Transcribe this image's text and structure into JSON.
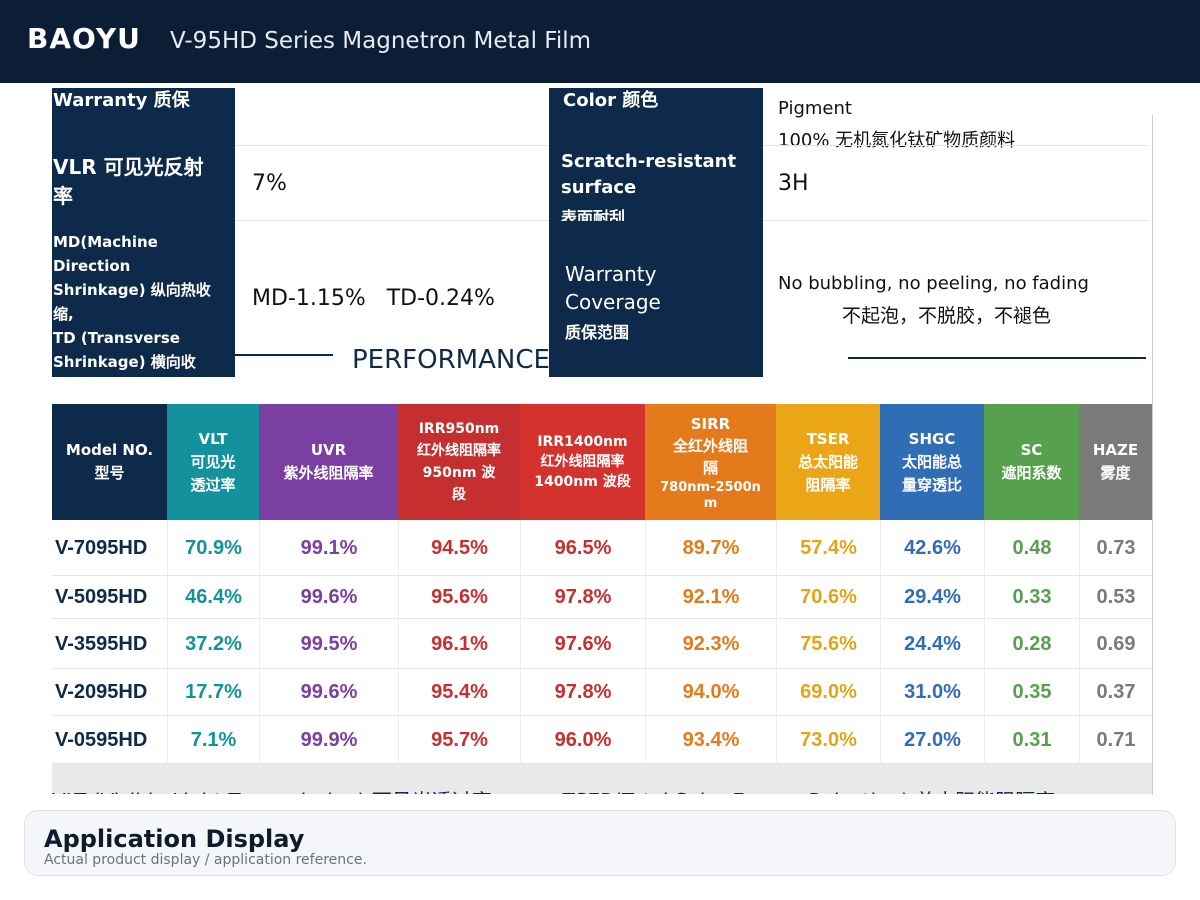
{
  "header": {
    "brand": "BAOYU",
    "title": "V-95HD Series Magnetron Metal Film"
  },
  "specs": {
    "r1": {
      "left_label": "Warranty 质保",
      "right_label": "Color 颜色",
      "right_value_en": "Pigment",
      "right_value_cn": "100% 无机氮化钛矿物质颜料"
    },
    "r2": {
      "left_label": "VLR 可见光反射率",
      "left_value": "7%",
      "right_label": "Scratch-resistant surface",
      "right_label_cn": "表面耐刮",
      "right_value": "3H"
    },
    "r3": {
      "left_label": "MD(Machine Direction Shrinkage) 纵向热收缩,\nTD (Transverse Shrinkage) 横向收",
      "left_value": "MD-1.15%   TD-0.24%",
      "right_label": "Warranty\nCoverage",
      "right_label_cn": "质保范围",
      "right_value_en": "No bubbling, no peeling, no fading",
      "right_value_cn": "不起泡，不脱胶，不褪色"
    }
  },
  "performance": {
    "title": "PERFORMANCE 性能数据",
    "headers": [
      {
        "l1": "Model NO.",
        "l2": "型号",
        "color": "#0e2a4a"
      },
      {
        "l1": "VLT",
        "l2": "可见光",
        "l3": "透过率",
        "color": "#13929e"
      },
      {
        "l1": "UVR",
        "l2": "紫外线阻隔率",
        "color": "#7b3ea1"
      },
      {
        "l1": "IRR950nm",
        "l2": "红外线阻隔率",
        "l3": "950nm 波",
        "l4": "段",
        "color": "#c62f2f"
      },
      {
        "l1": "IRR1400nm",
        "l2": "红外线阻隔率",
        "l3": "1400nm 波段",
        "color": "#d3322d"
      },
      {
        "l1": "SIRR",
        "l2": "全红外线阻",
        "l3": "隔",
        "l4": "780nm-2500n",
        "l5": "m",
        "color": "#e47a1b"
      },
      {
        "l1": "TSER",
        "l2": "总太阳能",
        "l3": "阻隔率",
        "color": "#eba617"
      },
      {
        "l1": "SHGC",
        "l2": "太阳能总",
        "l3": "量穿透比",
        "color": "#2f6db5"
      },
      {
        "l1": "SC",
        "l2": "遮阳系数",
        "color": "#56a04e"
      },
      {
        "l1": "HAZE",
        "l2": "雾度",
        "color": "#7a7a7a"
      }
    ],
    "value_colors": [
      "#0e2a4a",
      "#13929e",
      "#7b3ea1",
      "#c62f2f",
      "#c62f2f",
      "#e47a1b",
      "#e2a51a",
      "#2f6db5",
      "#56a04e",
      "#7a7a7a"
    ],
    "rows": [
      [
        "V-7095HD",
        "70.9%",
        "99.1%",
        "94.5%",
        "96.5%",
        "89.7%",
        "57.4%",
        "42.6%",
        "0.48",
        "0.73"
      ],
      [
        "V-5095HD",
        "46.4%",
        "99.6%",
        "95.6%",
        "97.8%",
        "92.1%",
        "70.6%",
        "29.4%",
        "0.33",
        "0.53"
      ],
      [
        "V-3595HD",
        "37.2%",
        "99.5%",
        "96.1%",
        "97.6%",
        "92.3%",
        "75.6%",
        "24.4%",
        "0.28",
        "0.69"
      ],
      [
        "V-2095HD",
        "17.7%",
        "99.6%",
        "95.4%",
        "97.8%",
        "94.0%",
        "69.0%",
        "31.0%",
        "0.35",
        "0.37"
      ],
      [
        "V-0595HD",
        "7.1%",
        "99.9%",
        "95.7%",
        "96.0%",
        "93.4%",
        "73.0%",
        "27.0%",
        "0.31",
        "0.71"
      ]
    ],
    "footnote": "VLT (Visible Light Transmission) 可见光透过率：        TSER(Total Solar Energy Rejection) 总太阳能阻隔率："
  },
  "card": {
    "title": "Application Display",
    "subtitle": "Actual product display / application reference."
  }
}
